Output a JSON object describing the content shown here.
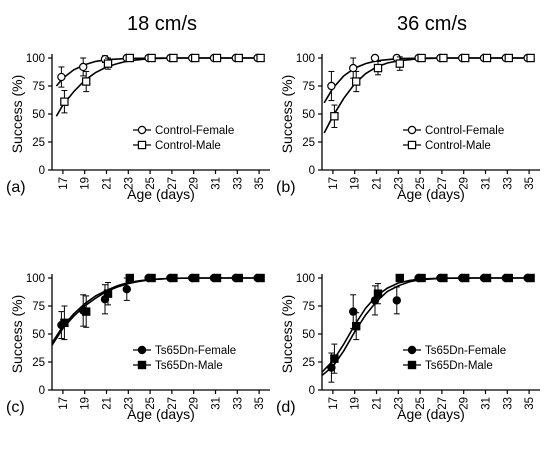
{
  "column_titles": [
    "18 cm/s",
    "36 cm/s"
  ],
  "chart_data": [
    {
      "type": "scatter",
      "panel_label": "(a)",
      "xlabel": "Age (days)",
      "ylabel": "Success (%)",
      "xlim": [
        16,
        36
      ],
      "ylim": [
        0,
        100
      ],
      "xticks": [
        17,
        19,
        21,
        23,
        25,
        27,
        29,
        31,
        33,
        35
      ],
      "yticks": [
        0,
        25,
        50,
        75,
        100
      ],
      "legend_position": "bottom-right",
      "series": [
        {
          "name": "Control-Female",
          "marker": "open-circle",
          "points": [
            [
              17,
              83
            ],
            [
              19,
              92
            ],
            [
              21,
              99
            ],
            [
              23,
              100
            ],
            [
              25,
              100
            ],
            [
              27,
              100
            ],
            [
              29,
              100
            ],
            [
              31,
              100
            ],
            [
              33,
              100
            ],
            [
              35,
              100
            ]
          ],
          "err": [
            9,
            8,
            3,
            0,
            0,
            0,
            0,
            0,
            0,
            0
          ],
          "fit": [
            [
              16.4,
              75
            ],
            [
              17,
              82
            ],
            [
              18,
              89.5
            ],
            [
              19,
              94
            ],
            [
              20,
              97
            ],
            [
              21,
              98.5
            ],
            [
              23,
              99.6
            ],
            [
              26,
              100
            ],
            [
              35,
              100
            ]
          ]
        },
        {
          "name": "Control-Male",
          "marker": "open-square",
          "points": [
            [
              17,
              61
            ],
            [
              19,
              79
            ],
            [
              21,
              95
            ],
            [
              23,
              100
            ],
            [
              25,
              100
            ],
            [
              27,
              100
            ],
            [
              29,
              100
            ],
            [
              31,
              100
            ],
            [
              33,
              100
            ],
            [
              35,
              100
            ]
          ],
          "err": [
            10,
            9,
            5,
            2,
            0,
            0,
            0,
            0,
            0,
            0
          ],
          "fit": [
            [
              16.4,
              48
            ],
            [
              17,
              58
            ],
            [
              18,
              70
            ],
            [
              19,
              80
            ],
            [
              20,
              87
            ],
            [
              21,
              92
            ],
            [
              22,
              95
            ],
            [
              23,
              97.5
            ],
            [
              25,
              99.5
            ],
            [
              28,
              100
            ],
            [
              35,
              100
            ]
          ]
        }
      ]
    },
    {
      "type": "scatter",
      "panel_label": "(b)",
      "xlabel": "Age (days)",
      "ylabel": "Success (%)",
      "xlim": [
        16,
        36
      ],
      "ylim": [
        0,
        100
      ],
      "xticks": [
        17,
        19,
        21,
        23,
        25,
        27,
        29,
        31,
        33,
        35
      ],
      "yticks": [
        0,
        25,
        50,
        75,
        100
      ],
      "legend_position": "bottom-right",
      "series": [
        {
          "name": "Control-Female",
          "marker": "open-circle",
          "points": [
            [
              17,
              75
            ],
            [
              19,
              91
            ],
            [
              21,
              100
            ],
            [
              23,
              100
            ],
            [
              25,
              100
            ],
            [
              27,
              100
            ],
            [
              29,
              100
            ],
            [
              31,
              100
            ],
            [
              33,
              100
            ],
            [
              35,
              100
            ]
          ],
          "err": [
            13,
            9,
            0,
            0,
            0,
            0,
            0,
            0,
            0,
            0
          ],
          "fit": [
            [
              16.2,
              60
            ],
            [
              17,
              73
            ],
            [
              18,
              84
            ],
            [
              19,
              91
            ],
            [
              20,
              95
            ],
            [
              21,
              97.5
            ],
            [
              23,
              99.5
            ],
            [
              26,
              100
            ],
            [
              35,
              100
            ]
          ]
        },
        {
          "name": "Control-Male",
          "marker": "open-square",
          "points": [
            [
              17,
              48
            ],
            [
              19,
              79
            ],
            [
              21,
              91
            ],
            [
              23,
              95
            ],
            [
              25,
              100
            ],
            [
              27,
              100
            ],
            [
              29,
              100
            ],
            [
              31,
              100
            ],
            [
              33,
              100
            ],
            [
              35,
              100
            ]
          ],
          "err": [
            10,
            9,
            6,
            6,
            0,
            0,
            0,
            0,
            0,
            0
          ],
          "fit": [
            [
              16.2,
              33
            ],
            [
              17,
              48
            ],
            [
              18,
              64
            ],
            [
              19,
              77
            ],
            [
              20,
              86
            ],
            [
              21,
              92
            ],
            [
              22,
              95.5
            ],
            [
              23,
              97.5
            ],
            [
              25,
              99.5
            ],
            [
              28,
              100
            ],
            [
              35,
              100
            ]
          ]
        }
      ]
    },
    {
      "type": "scatter",
      "panel_label": "(c)",
      "xlabel": "Age (days)",
      "ylabel": "Success (%)",
      "xlim": [
        16,
        36
      ],
      "ylim": [
        0,
        100
      ],
      "xticks": [
        17,
        19,
        21,
        23,
        25,
        27,
        29,
        31,
        33,
        35
      ],
      "yticks": [
        0,
        25,
        50,
        75,
        100
      ],
      "legend_position": "bottom-right",
      "series": [
        {
          "name": "Ts65Dn-Female",
          "marker": "filled-circle",
          "points": [
            [
              17,
              58
            ],
            [
              19,
              71
            ],
            [
              21,
              81
            ],
            [
              23,
              90
            ],
            [
              25,
              100
            ],
            [
              27,
              100
            ],
            [
              29,
              100
            ],
            [
              31,
              100
            ],
            [
              33,
              100
            ],
            [
              35,
              100
            ]
          ],
          "err": [
            12,
            14,
            13,
            10,
            0,
            0,
            0,
            0,
            0,
            0
          ],
          "fit": [
            [
              16,
              40
            ],
            [
              17,
              55
            ],
            [
              18,
              66
            ],
            [
              19,
              75
            ],
            [
              20,
              82
            ],
            [
              21,
              88
            ],
            [
              22,
              92
            ],
            [
              23,
              95
            ],
            [
              24,
              97
            ],
            [
              25,
              98.5
            ],
            [
              27,
              99.7
            ],
            [
              30,
              100
            ],
            [
              35,
              100
            ]
          ]
        },
        {
          "name": "Ts65Dn-Male",
          "marker": "filled-square",
          "points": [
            [
              17,
              60
            ],
            [
              19,
              70
            ],
            [
              21,
              86
            ],
            [
              23,
              100
            ],
            [
              25,
              100
            ],
            [
              27,
              100
            ],
            [
              29,
              100
            ],
            [
              31,
              100
            ],
            [
              33,
              100
            ],
            [
              35,
              100
            ]
          ],
          "err": [
            15,
            14,
            10,
            0,
            0,
            0,
            0,
            0,
            0,
            0
          ],
          "fit": [
            [
              16,
              42
            ],
            [
              17,
              57
            ],
            [
              18,
              68
            ],
            [
              19,
              77
            ],
            [
              20,
              84
            ],
            [
              21,
              89
            ],
            [
              22,
              93
            ],
            [
              23,
              96
            ],
            [
              24,
              97.5
            ],
            [
              25,
              98.7
            ],
            [
              27,
              99.7
            ],
            [
              30,
              100
            ],
            [
              35,
              100
            ]
          ]
        }
      ]
    },
    {
      "type": "scatter",
      "panel_label": "(d)",
      "xlabel": "Age (days)",
      "ylabel": "Success (%)",
      "xlim": [
        16,
        36
      ],
      "ylim": [
        0,
        100
      ],
      "xticks": [
        17,
        19,
        21,
        23,
        25,
        27,
        29,
        31,
        33,
        35
      ],
      "yticks": [
        0,
        25,
        50,
        75,
        100
      ],
      "legend_position": "bottom-right",
      "series": [
        {
          "name": "Ts65Dn-Female",
          "marker": "filled-circle",
          "points": [
            [
              17,
              20
            ],
            [
              19,
              70
            ],
            [
              21,
              80
            ],
            [
              23,
              80
            ],
            [
              25,
              100
            ],
            [
              27,
              100
            ],
            [
              29,
              100
            ],
            [
              31,
              100
            ],
            [
              33,
              100
            ],
            [
              35,
              100
            ]
          ],
          "err": [
            13,
            15,
            13,
            12,
            0,
            0,
            0,
            0,
            0,
            0
          ],
          "fit": [
            [
              16,
              13
            ],
            [
              17,
              21
            ],
            [
              18,
              35
            ],
            [
              19,
              52
            ],
            [
              20,
              67
            ],
            [
              21,
              79
            ],
            [
              22,
              88
            ],
            [
              23,
              93
            ],
            [
              24,
              96.5
            ],
            [
              25,
              98.5
            ],
            [
              27,
              99.7
            ],
            [
              30,
              100
            ],
            [
              35,
              100
            ]
          ]
        },
        {
          "name": "Ts65Dn-Male",
          "marker": "filled-square",
          "points": [
            [
              17,
              28
            ],
            [
              19,
              57
            ],
            [
              21,
              86
            ],
            [
              23,
              100
            ],
            [
              25,
              100
            ],
            [
              27,
              100
            ],
            [
              29,
              100
            ],
            [
              31,
              100
            ],
            [
              33,
              100
            ],
            [
              35,
              100
            ]
          ],
          "err": [
            13,
            12,
            9,
            0,
            0,
            0,
            0,
            0,
            0,
            0
          ],
          "fit": [
            [
              16,
              16
            ],
            [
              17,
              26
            ],
            [
              18,
              41
            ],
            [
              19,
              58
            ],
            [
              20,
              73
            ],
            [
              21,
              84
            ],
            [
              22,
              91
            ],
            [
              23,
              95.5
            ],
            [
              24,
              97.8
            ],
            [
              25,
              99
            ],
            [
              27,
              99.8
            ],
            [
              30,
              100
            ],
            [
              35,
              100
            ]
          ]
        }
      ]
    }
  ]
}
